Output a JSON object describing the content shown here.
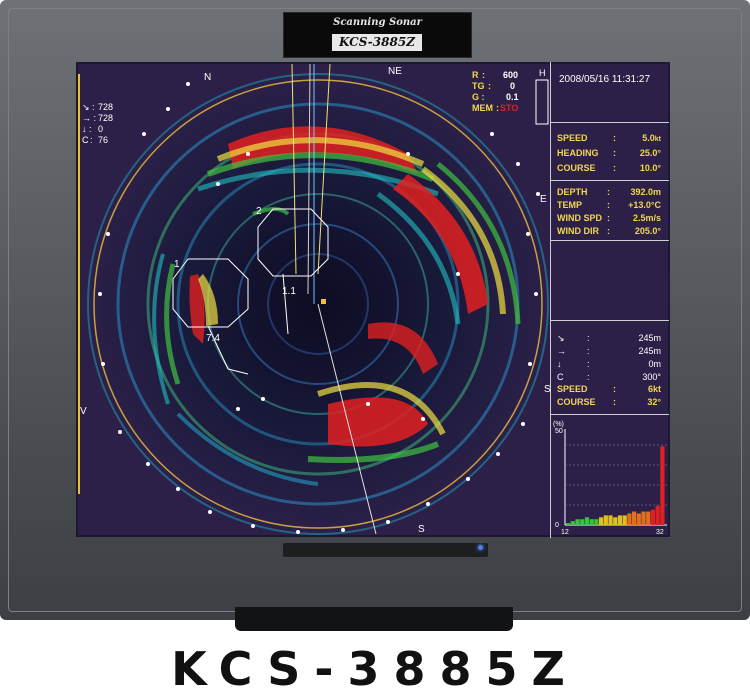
{
  "device": {
    "badge_title": "Scanning Sonar",
    "badge_model": "KCS-3885Z",
    "caption": "KCS-3885Z"
  },
  "colors": {
    "screen_bg": "#2c2048",
    "text_yellow": "#f2d84a",
    "echo_red": "#e02020",
    "echo_green": "#40c040",
    "echo_cyan": "#20c0c0",
    "led_blue": "#4a7cff"
  },
  "sonar": {
    "compass": {
      "n": "N",
      "ne": "NE",
      "e": "E",
      "s": "S",
      "se": "S",
      "w": "V"
    },
    "cursor": {
      "down_right": "728",
      "right": "728",
      "down": "0",
      "c_label": "C",
      "c": "76"
    },
    "range": {
      "r_label": "R",
      "r": "600",
      "tg_label": "TG",
      "t": "0",
      "g": "0.1",
      "mem_label": "MEM",
      "mem_value": "STO"
    },
    "h_label": "H",
    "targets": {
      "t1": "1",
      "t2": "2",
      "t11": "1.1",
      "t74": "7.4"
    }
  },
  "panel": {
    "datetime": "2008/05/16 11:31:27",
    "nav": [
      {
        "label": "SPEED",
        "value": "5.0",
        "unit": "kt"
      },
      {
        "label": "HEADING",
        "value": "25.0°"
      },
      {
        "label": "COURSE",
        "value": "10.0°"
      }
    ],
    "env": [
      {
        "label": "DEPTH",
        "value": "392.0m"
      },
      {
        "label": "TEMP",
        "value": "+13.0°C"
      },
      {
        "label": "WIND SPD",
        "value": "2.5m/s"
      },
      {
        "label": "WIND DIR",
        "value": "205.0°"
      }
    ],
    "target_info": [
      {
        "label": "↘",
        "value": "245m"
      },
      {
        "label": "→",
        "value": "245m"
      },
      {
        "label": "↓",
        "value": "0m"
      },
      {
        "label": "C",
        "value": "300°"
      },
      {
        "label": "SPEED",
        "value": "6kt"
      },
      {
        "label": "COURSE",
        "value": "32°"
      }
    ],
    "histogram": {
      "unit_label": "(%)",
      "y_max_label": "50",
      "y_min_label": "0",
      "x_min_label": "12",
      "x_max_label": "32"
    }
  },
  "chart_data": {
    "type": "bar",
    "title": "",
    "ylim": [
      0,
      50
    ],
    "values": [
      1,
      2,
      3,
      3,
      4,
      3,
      3,
      4,
      5,
      5,
      4,
      5,
      5,
      6,
      7,
      6,
      7,
      7,
      8,
      10,
      41
    ]
  }
}
